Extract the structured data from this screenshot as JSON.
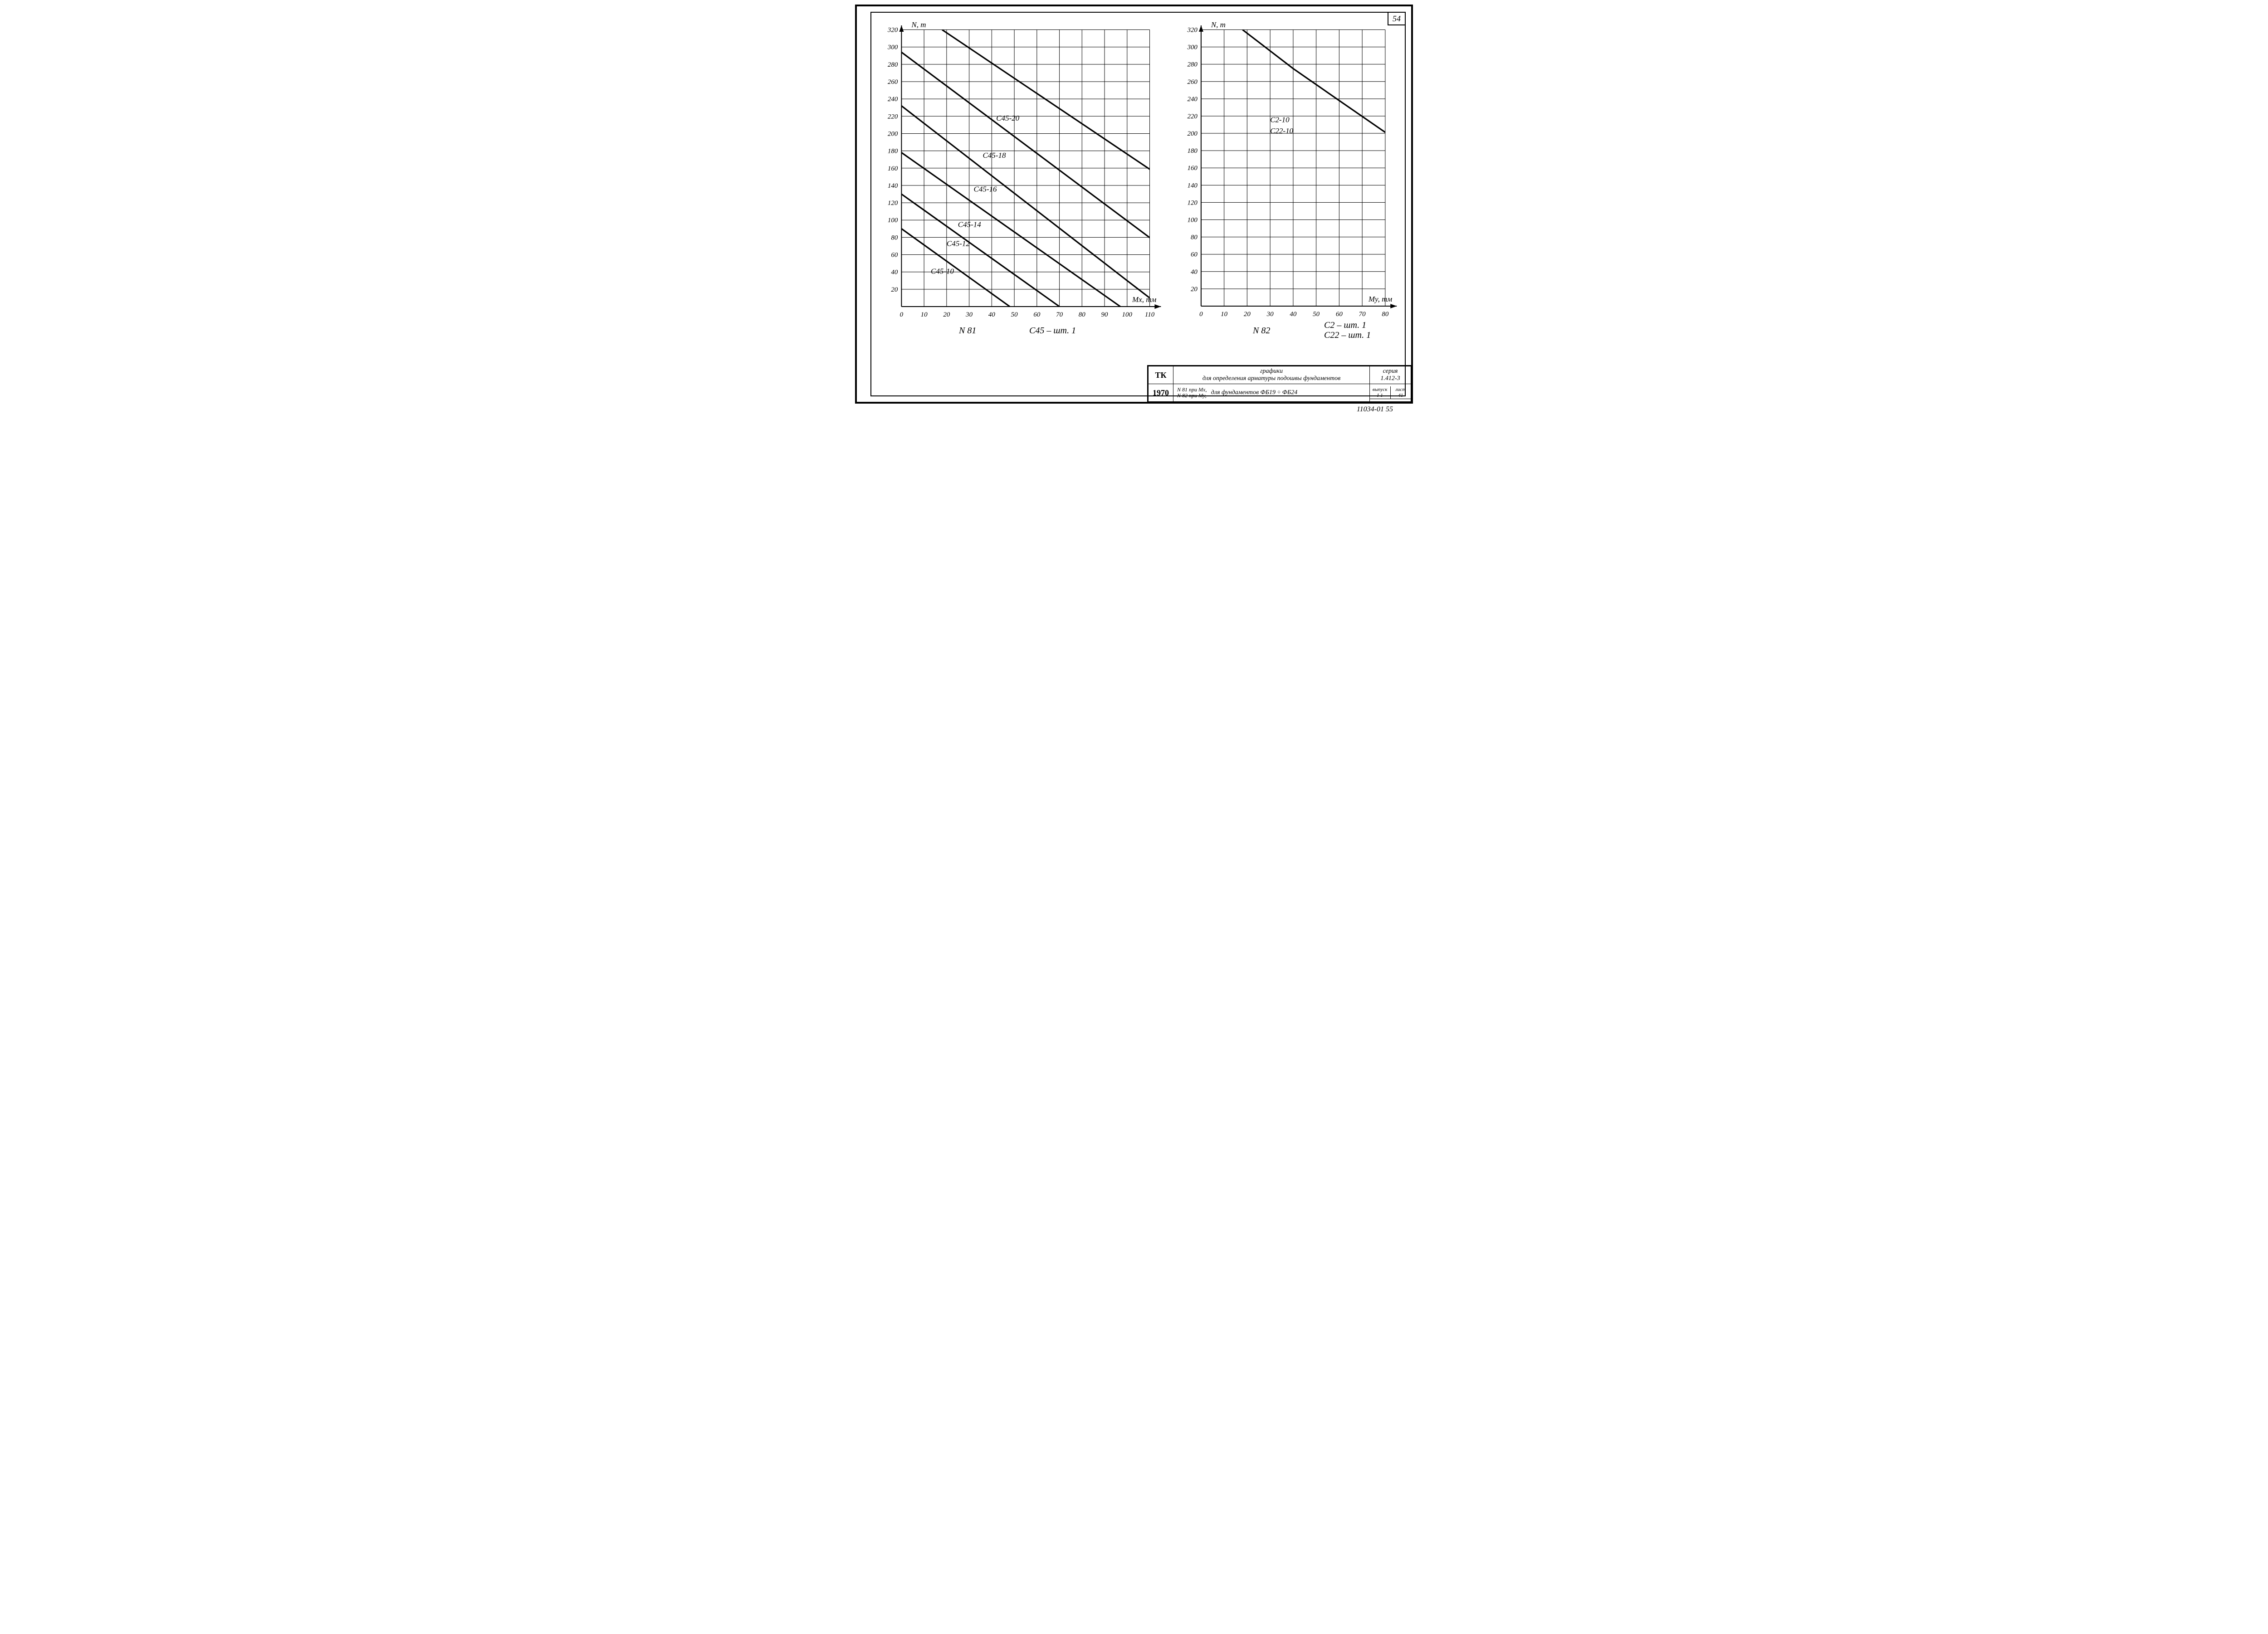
{
  "page_number_top_right": "54",
  "footer_code": "11034-01    55",
  "chart_left": {
    "type": "line",
    "x_axis_label": "Mx, тм",
    "y_axis_label": "N, т",
    "xlim": [
      0,
      115
    ],
    "ylim": [
      0,
      325
    ],
    "x_ticks": [
      0,
      10,
      20,
      30,
      40,
      50,
      60,
      70,
      80,
      90,
      100,
      110
    ],
    "y_ticks": [
      20,
      40,
      60,
      80,
      100,
      120,
      140,
      160,
      180,
      200,
      220,
      240,
      260,
      280,
      300,
      320
    ],
    "grid_color": "#000000",
    "grid_width": 1,
    "line_color": "#000000",
    "line_width": 3.2,
    "label_fontsize": 17,
    "tick_fontsize": 15,
    "series": [
      {
        "label": "C45-10",
        "points": [
          [
            0,
            90
          ],
          [
            48,
            0
          ]
        ],
        "label_xy": [
          13,
          38
        ]
      },
      {
        "label": "C45-12",
        "points": [
          [
            0,
            130
          ],
          [
            70,
            0
          ]
        ],
        "label_xy": [
          20,
          70
        ]
      },
      {
        "label": "C45-14",
        "points": [
          [
            0,
            178
          ],
          [
            97,
            0
          ]
        ],
        "label_xy": [
          25,
          92
        ]
      },
      {
        "label": "C45-16",
        "points": [
          [
            0,
            232
          ],
          [
            100,
            30
          ],
          [
            115,
            0
          ]
        ],
        "label_xy": [
          32,
          133
        ]
      },
      {
        "label": "C45-18",
        "points": [
          [
            0,
            294
          ],
          [
            115,
            70
          ]
        ],
        "label_xy": [
          36,
          172
        ]
      },
      {
        "label": "C45-20",
        "points": [
          [
            18,
            320
          ],
          [
            115,
            150
          ]
        ],
        "label_xy": [
          42,
          215
        ]
      }
    ],
    "caption_id": "N 81",
    "caption_right": "C45 – шт. 1"
  },
  "chart_right": {
    "type": "line",
    "x_axis_label": "My, тм",
    "y_axis_label": "N, т",
    "xlim": [
      0,
      85
    ],
    "ylim": [
      0,
      325
    ],
    "x_ticks": [
      0,
      10,
      20,
      30,
      40,
      50,
      60,
      70,
      80
    ],
    "y_ticks": [
      20,
      40,
      60,
      80,
      100,
      120,
      140,
      160,
      180,
      200,
      220,
      240,
      260,
      280,
      300,
      320
    ],
    "grid_color": "#000000",
    "grid_width": 1,
    "line_color": "#000000",
    "line_width": 3.2,
    "label_fontsize": 17,
    "tick_fontsize": 15,
    "series": [
      {
        "label": "C2-10",
        "points": [
          [
            18,
            320
          ],
          [
            40,
            275
          ],
          [
            60,
            238
          ],
          [
            85,
            192
          ]
        ],
        "label_xy": [
          30,
          213
        ]
      },
      {
        "label": "C22-10",
        "points": [],
        "label_xy": [
          30,
          200
        ]
      }
    ],
    "caption_id": "N 82",
    "caption_right_line1": "C2 – шт. 1",
    "caption_right_line2": "C22 – шт. 1"
  },
  "title_block": {
    "tk": "ТК",
    "year": "1970",
    "row1_main_top": "графики",
    "row1_main_bottom": "для определения арматуры подошвы фундаментов",
    "row2_left_top": "N 81 при Mx,",
    "row2_left_bottom": "N 82 при My,",
    "row2_right": "для фундаментов ФБ19 ÷ ФБ24",
    "seria_label": "серия",
    "seria_value": "1.412-3",
    "vypusk_label": "выпуск",
    "vypusk_value": "I-1",
    "list_label": "лист",
    "list_value": "41"
  }
}
